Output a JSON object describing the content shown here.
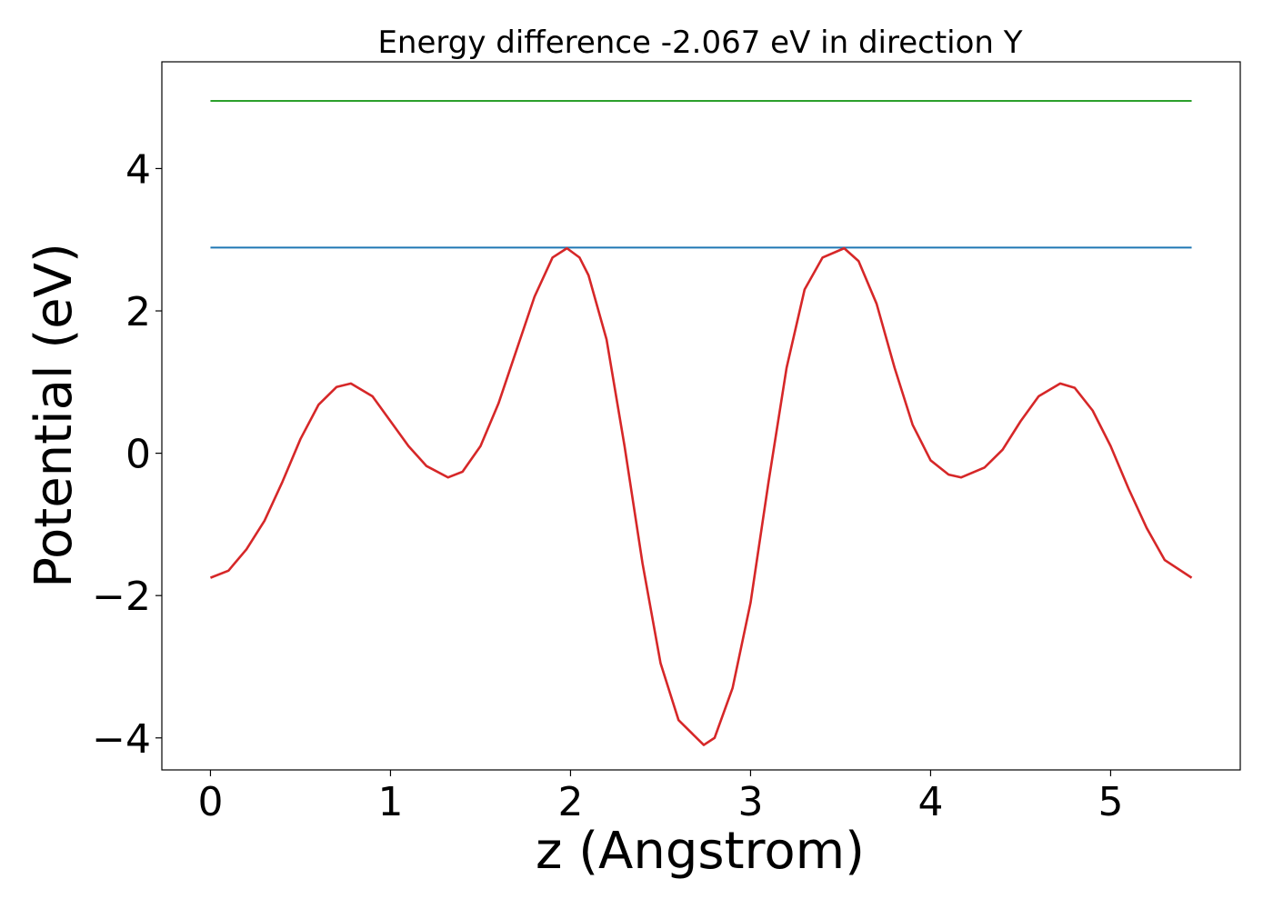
{
  "chart_data": {
    "type": "line",
    "title": "Energy difference -2.067 eV in direction Y",
    "xlabel": "z (Angstrom)",
    "ylabel": "Potential (eV)",
    "xlim": [
      -0.27,
      5.72
    ],
    "ylim": [
      -4.45,
      5.5
    ],
    "xticks": [
      0,
      1,
      2,
      3,
      4,
      5
    ],
    "xtick_labels": [
      "0",
      "1",
      "2",
      "3",
      "4",
      "5"
    ],
    "yticks": [
      -4,
      -2,
      0,
      2,
      4
    ],
    "ytick_labels": [
      "−4",
      "−2",
      "0",
      "2",
      "4"
    ],
    "grid": false,
    "series": [
      {
        "color": "#2ca02c",
        "x": [
          0,
          5.45
        ],
        "y": [
          4.95,
          4.95
        ]
      },
      {
        "color": "#1f77b4",
        "x": [
          0,
          5.45
        ],
        "y": [
          2.89,
          2.89
        ]
      },
      {
        "color": "#d62728",
        "x": [
          0,
          0.1,
          0.2,
          0.3,
          0.4,
          0.5,
          0.6,
          0.7,
          0.78,
          0.9,
          1.0,
          1.1,
          1.2,
          1.32,
          1.4,
          1.5,
          1.6,
          1.7,
          1.8,
          1.9,
          1.98,
          2.05,
          2.1,
          2.2,
          2.3,
          2.4,
          2.5,
          2.6,
          2.74,
          2.8,
          2.9,
          3.0,
          3.1,
          3.2,
          3.3,
          3.4,
          3.52,
          3.6,
          3.7,
          3.8,
          3.9,
          4.0,
          4.1,
          4.17,
          4.3,
          4.4,
          4.5,
          4.6,
          4.72,
          4.8,
          4.9,
          5.0,
          5.1,
          5.2,
          5.3,
          5.45
        ],
        "y": [
          -1.75,
          -1.65,
          -1.35,
          -0.95,
          -0.4,
          0.2,
          0.68,
          0.93,
          0.98,
          0.8,
          0.45,
          0.1,
          -0.18,
          -0.34,
          -0.26,
          0.1,
          0.7,
          1.45,
          2.2,
          2.75,
          2.88,
          2.75,
          2.5,
          1.6,
          0.1,
          -1.55,
          -2.95,
          -3.75,
          -4.1,
          -4.0,
          -3.3,
          -2.1,
          -0.4,
          1.2,
          2.3,
          2.75,
          2.88,
          2.7,
          2.1,
          1.2,
          0.4,
          -0.1,
          -0.3,
          -0.34,
          -0.2,
          0.05,
          0.45,
          0.8,
          0.98,
          0.92,
          0.6,
          0.1,
          -0.5,
          -1.05,
          -1.5,
          -1.75
        ]
      }
    ]
  }
}
